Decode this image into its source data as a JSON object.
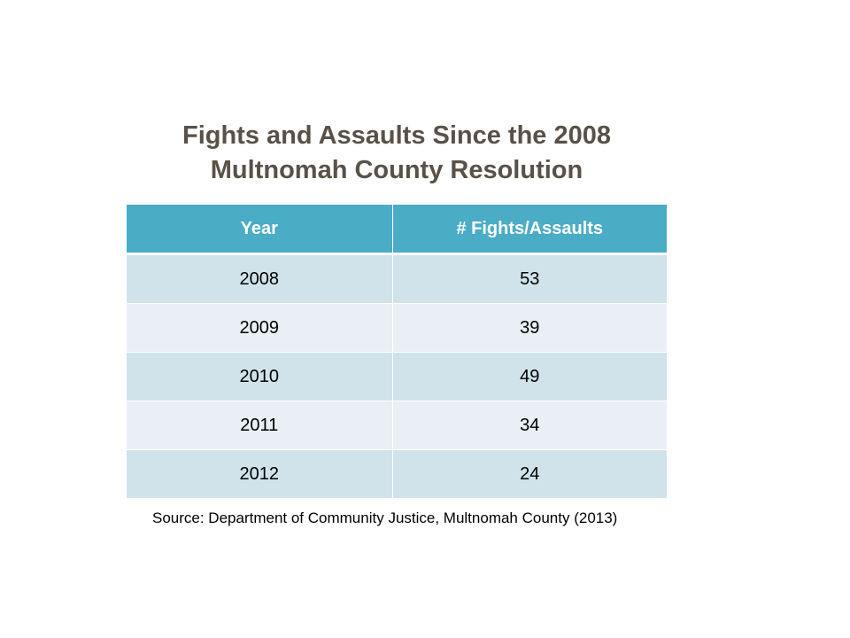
{
  "title_line1": "Fights and Assaults Since the 2008",
  "title_line2": "Multnomah County Resolution",
  "table": {
    "headers": [
      "Year",
      "# Fights/Assaults"
    ],
    "rows": [
      [
        "2008",
        "53"
      ],
      [
        "2009",
        "39"
      ],
      [
        "2010",
        "49"
      ],
      [
        "2011",
        "34"
      ],
      [
        "2012",
        "24"
      ]
    ]
  },
  "source": "Source: Department of Community Justice,  Multnomah County (2013)",
  "colors": {
    "header_bg": "#4bacc6",
    "row_dark": "#d0e3ea",
    "row_light": "#e9eff4",
    "title_text": "#595148"
  }
}
